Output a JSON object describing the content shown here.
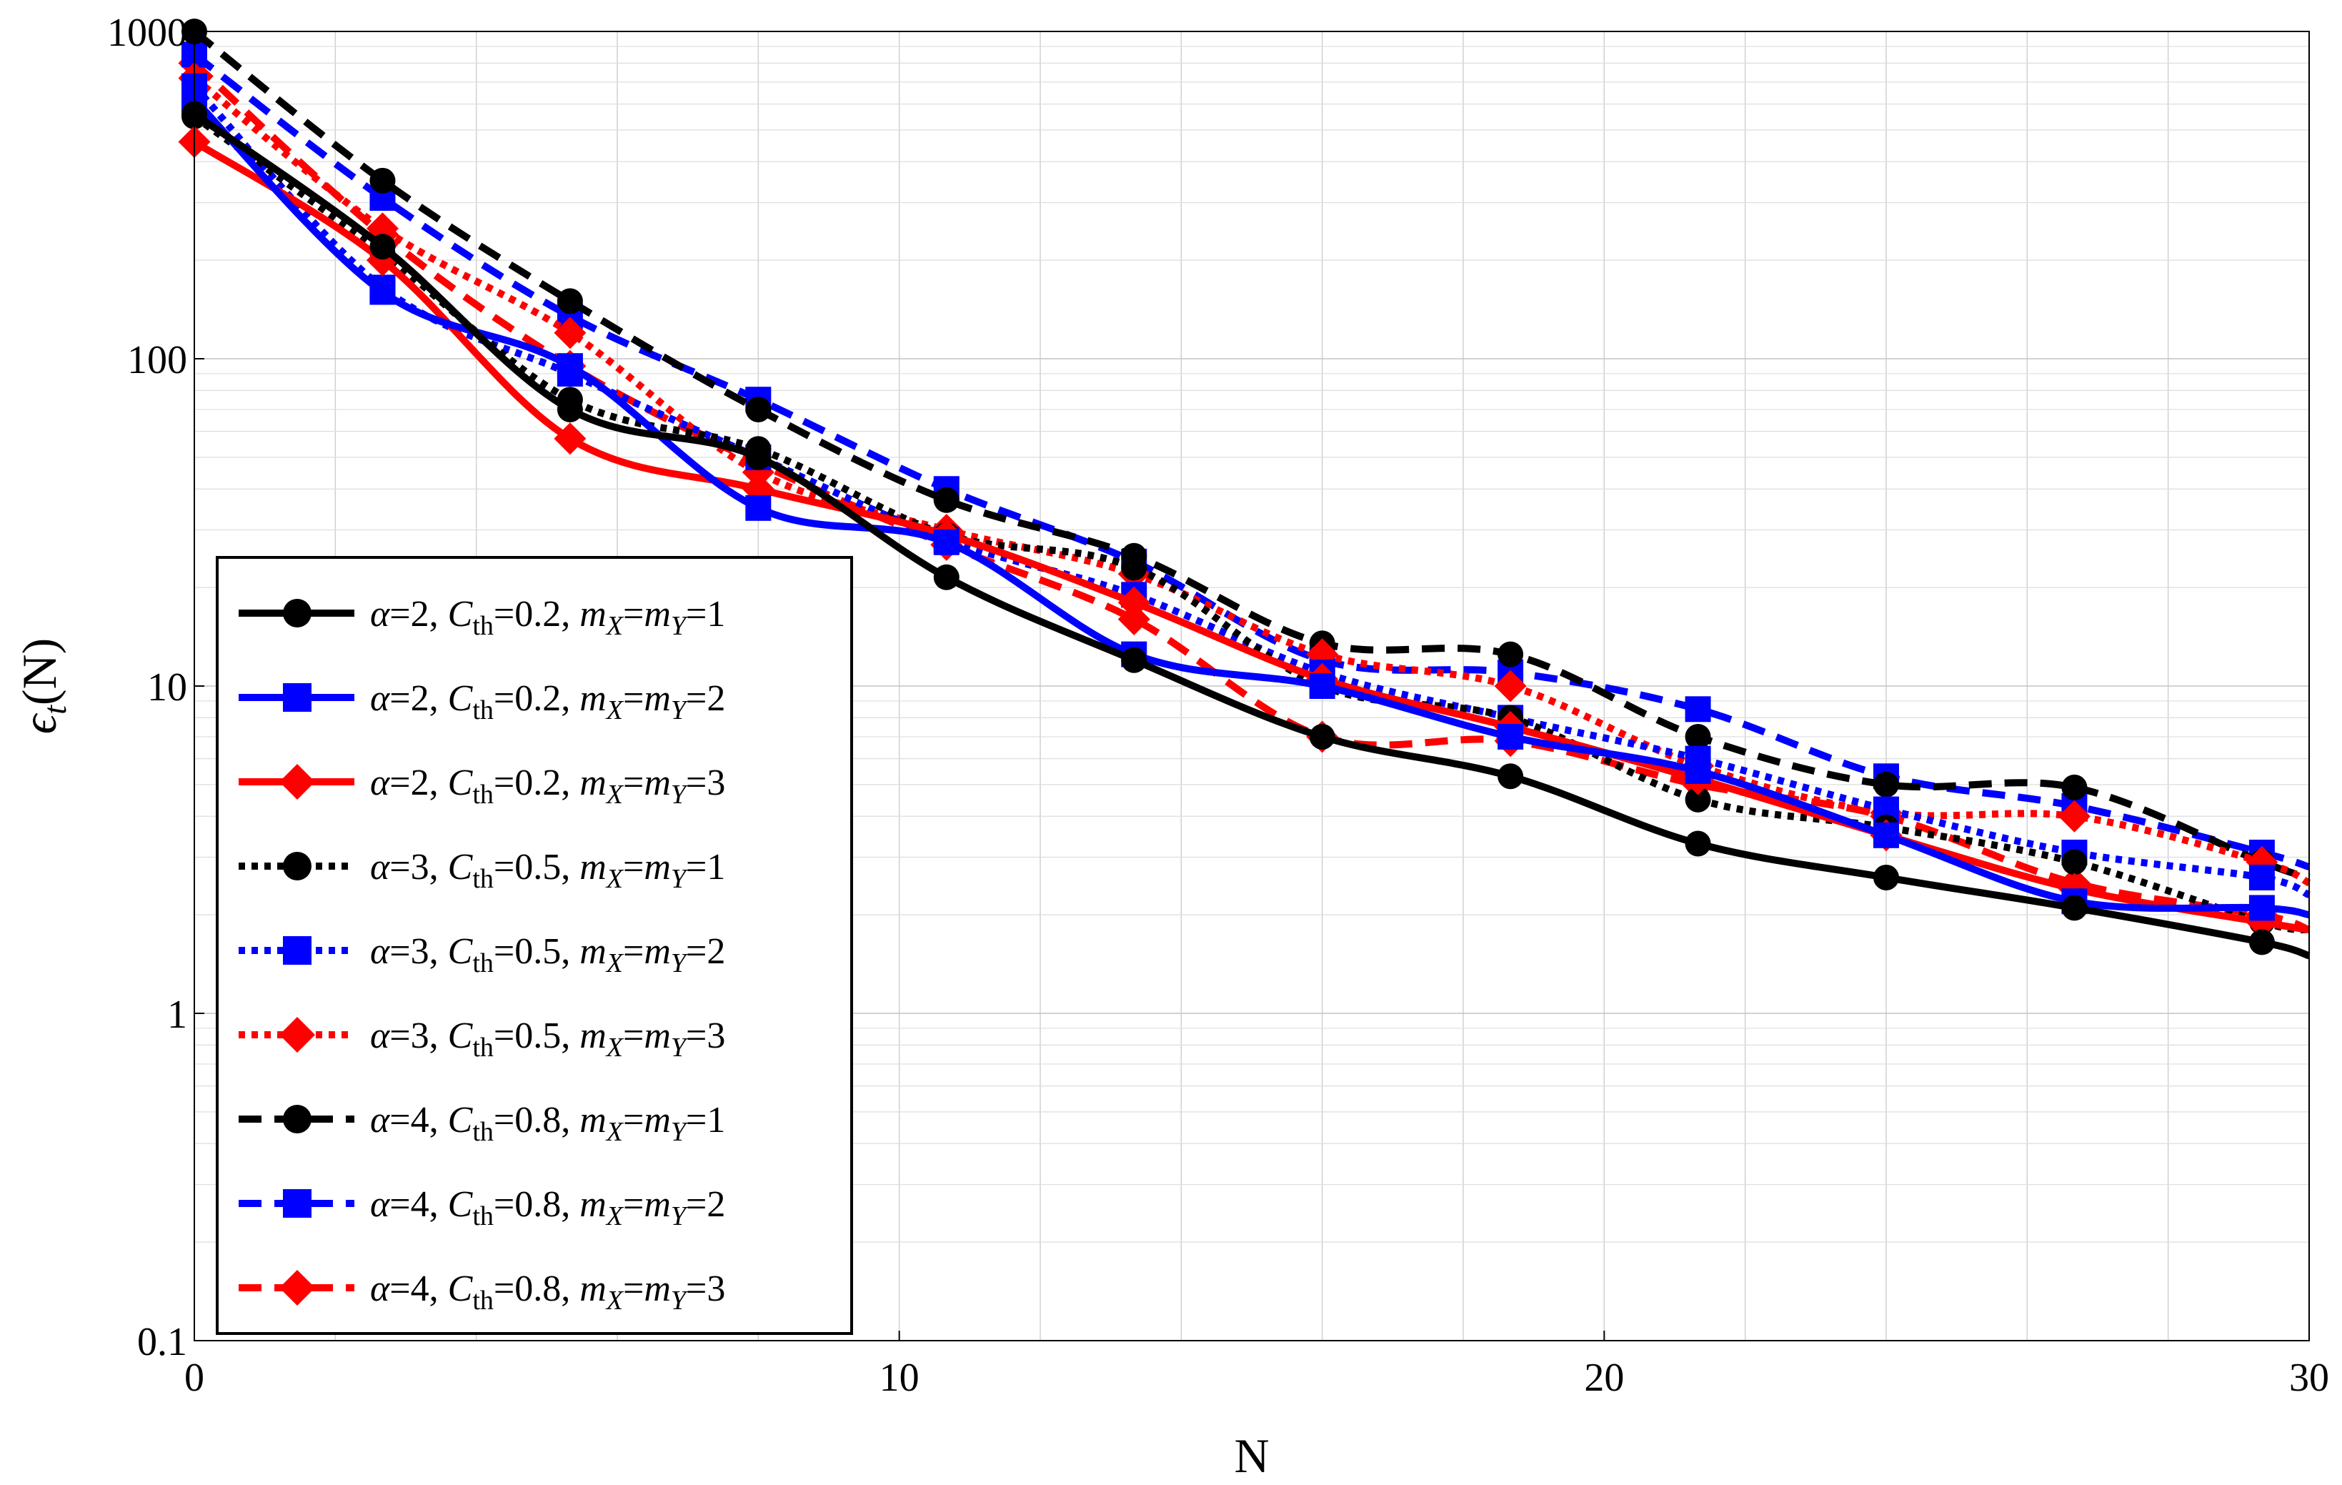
{
  "chart_data": {
    "type": "line",
    "title": "",
    "xlabel": "N",
    "ylabel": "ϵt(N)",
    "xlim": [
      0,
      30
    ],
    "ylim": [
      0.1,
      1000
    ],
    "yscale": "log",
    "grid": true,
    "legend_position": "bottom-left",
    "x_ticks": [
      0,
      10,
      20,
      30
    ],
    "x_tick_labels": [
      "0",
      "10",
      "20",
      "30"
    ],
    "y_ticks": [
      0.1,
      1,
      10,
      100,
      1000
    ],
    "y_tick_labels": [
      "0.1",
      "1",
      "10",
      "100",
      "1000"
    ],
    "x": [
      0,
      2.67,
      5.33,
      8,
      10.67,
      13.33,
      16,
      18.67,
      21.33,
      24,
      26.67,
      29.33,
      30
    ],
    "series": [
      {
        "name": "α=2, Cth=0.2, mX=mY=1",
        "alpha": "2",
        "cth": "0.2",
        "m": "1",
        "color": "#000000",
        "style": "solid",
        "marker": "circle",
        "values": [
          560,
          220,
          70,
          50,
          21.5,
          12,
          7,
          5.3,
          3.3,
          2.6,
          2.1,
          1.65,
          1.5
        ]
      },
      {
        "name": "α=2, Cth=0.2, mX=mY=2",
        "alpha": "2",
        "cth": "0.2",
        "m": "2",
        "color": "#0000ff",
        "style": "solid",
        "marker": "square",
        "values": [
          620,
          160,
          95,
          35,
          27.5,
          12.5,
          10,
          7,
          5.5,
          3.5,
          2.2,
          2.1,
          2
        ]
      },
      {
        "name": "α=2, Cth=0.2, mX=mY=3",
        "alpha": "2",
        "cth": "0.2",
        "m": "3",
        "color": "#ff0000",
        "style": "solid",
        "marker": "diamond",
        "values": [
          460,
          200,
          57,
          40,
          29,
          18,
          10.5,
          7.5,
          5.2,
          3.5,
          2.4,
          1.9,
          1.8
        ]
      },
      {
        "name": "α=3, Cth=0.5, mX=mY=1",
        "alpha": "3",
        "cth": "0.5",
        "m": "1",
        "color": "#000000",
        "style": "dotted",
        "marker": "circle",
        "values": [
          550,
          210,
          75,
          53,
          29,
          23,
          10,
          8,
          4.5,
          3.7,
          2.9,
          1.9,
          1.8
        ]
      },
      {
        "name": "α=3, Cth=0.5, mX=mY=2",
        "alpha": "3",
        "cth": "0.5",
        "m": "2",
        "color": "#0000ff",
        "style": "dotted",
        "marker": "square",
        "values": [
          680,
          165,
          90,
          50,
          28,
          19,
          11,
          8,
          6,
          4.2,
          3.1,
          2.6,
          2.3
        ]
      },
      {
        "name": "α=3, Cth=0.5, mX=mY=3",
        "alpha": "3",
        "cth": "0.5",
        "m": "3",
        "color": "#ff0000",
        "style": "dotted",
        "marker": "diamond",
        "values": [
          720,
          250,
          120,
          45,
          30,
          22,
          12.5,
          10,
          5.7,
          4.1,
          4,
          2.9,
          2.5
        ]
      },
      {
        "name": "α=4, Cth=0.8, mX=mY=1",
        "alpha": "4",
        "cth": "0.8",
        "m": "1",
        "color": "#000000",
        "style": "dashed",
        "marker": "circle",
        "values": [
          1000,
          350,
          150,
          70,
          37,
          25,
          13.5,
          12.5,
          7,
          5,
          4.9,
          2.9,
          2.6
        ]
      },
      {
        "name": "α=4, Cth=0.8, mX=mY=2",
        "alpha": "4",
        "cth": "0.8",
        "m": "2",
        "color": "#0000ff",
        "style": "dashed",
        "marker": "square",
        "values": [
          850,
          310,
          135,
          75,
          40,
          24,
          12,
          11,
          8.5,
          5.3,
          4.3,
          3.1,
          2.8
        ]
      },
      {
        "name": "α=4, Cth=0.8, mX=mY=3",
        "alpha": "4",
        "cth": "0.8",
        "m": "3",
        "color": "#ff0000",
        "style": "dashed",
        "marker": "diamond",
        "values": [
          800,
          240,
          95,
          48,
          27,
          16,
          7,
          6.8,
          5,
          4,
          2.5,
          2,
          1.8
        ]
      }
    ]
  }
}
